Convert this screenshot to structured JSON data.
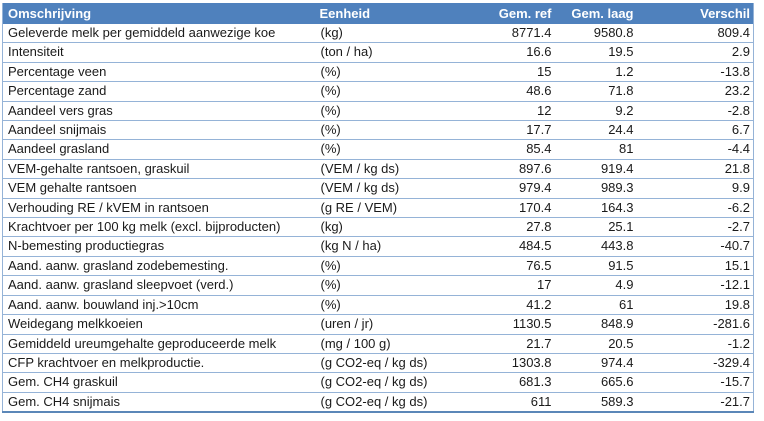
{
  "colors": {
    "header_bg": "#4F81BD",
    "header_text": "#FFFFFF",
    "row_border": "#95B3D7",
    "table_bottom_border": "#5B87B8",
    "body_text": "#1A1A1A"
  },
  "chart_data": {
    "type": "table",
    "columns": [
      "Omschrijving",
      "Eenheid",
      "Gem. ref",
      "Gem. laag",
      "Verschil"
    ],
    "rows": [
      [
        "Geleverde melk per gemiddeld aanwezige koe",
        "(kg)",
        "8771.4",
        "9580.8",
        "809.4"
      ],
      [
        "Intensiteit",
        "(ton / ha)",
        "16.6",
        "19.5",
        "2.9"
      ],
      [
        "Percentage veen",
        "(%)",
        "15",
        "1.2",
        "-13.8"
      ],
      [
        "Percentage zand",
        "(%)",
        "48.6",
        "71.8",
        "23.2"
      ],
      [
        "Aandeel vers gras",
        "(%)",
        "12",
        "9.2",
        "-2.8"
      ],
      [
        "Aandeel snijmais",
        "(%)",
        "17.7",
        "24.4",
        "6.7"
      ],
      [
        "Aandeel grasland",
        "(%)",
        "85.4",
        "81",
        "-4.4"
      ],
      [
        "VEM-gehalte rantsoen, graskuil",
        "(VEM / kg ds)",
        "897.6",
        "919.4",
        "21.8"
      ],
      [
        "VEM gehalte rantsoen",
        "(VEM / kg ds)",
        "979.4",
        "989.3",
        "9.9"
      ],
      [
        "Verhouding RE / kVEM in rantsoen",
        "(g RE / VEM)",
        "170.4",
        "164.3",
        "-6.2"
      ],
      [
        "Krachtvoer per 100 kg melk (excl. bijproducten)",
        "(kg)",
        "27.8",
        "25.1",
        "-2.7"
      ],
      [
        "N-bemesting productiegras",
        "(kg N / ha)",
        "484.5",
        "443.8",
        "-40.7"
      ],
      [
        "Aand. aanw. grasland zodebemesting.",
        "(%)",
        "76.5",
        "91.5",
        "15.1"
      ],
      [
        "Aand. aanw. grasland sleepvoet (verd.)",
        "(%)",
        "17",
        "4.9",
        "-12.1"
      ],
      [
        "Aand. aanw. bouwland inj.>10cm",
        "(%)",
        "41.2",
        "61",
        "19.8"
      ],
      [
        "Weidegang melkkoeien",
        "(uren / jr)",
        "1130.5",
        "848.9",
        "-281.6"
      ],
      [
        "Gemiddeld ureumgehalte geproduceerde melk",
        "(mg / 100 g)",
        "21.7",
        "20.5",
        "-1.2"
      ],
      [
        "CFP krachtvoer en melkproductie.",
        "(g CO2-eq / kg ds)",
        "1303.8",
        "974.4",
        "-329.4"
      ],
      [
        "Gem. CH4 graskuil",
        "(g CO2-eq / kg ds)",
        "681.3",
        "665.6",
        "-15.7"
      ],
      [
        "Gem. CH4 snijmais",
        "(g CO2-eq / kg ds)",
        "611",
        "589.3",
        "-21.7"
      ]
    ]
  }
}
